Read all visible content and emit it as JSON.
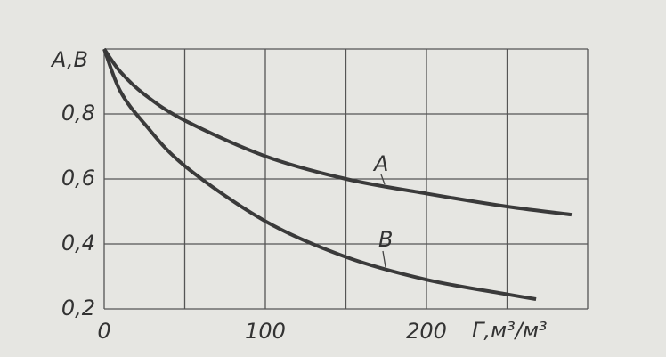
{
  "chart_data": {
    "type": "line",
    "y_label": "A,B",
    "x_label": "Г,м³/м³",
    "series": [
      {
        "name": "A",
        "color": "#3a3a3a",
        "x": [
          0,
          10,
          25,
          50,
          100,
          150,
          200,
          250,
          290
        ],
        "values": [
          1.0,
          0.93,
          0.86,
          0.78,
          0.67,
          0.6,
          0.555,
          0.515,
          0.49
        ]
      },
      {
        "name": "B",
        "color": "#3a3a3a",
        "x": [
          0,
          10,
          25,
          50,
          100,
          150,
          200,
          250,
          268
        ],
        "values": [
          1.0,
          0.87,
          0.77,
          0.64,
          0.47,
          0.36,
          0.29,
          0.245,
          0.23
        ]
      }
    ],
    "xlim": [
      0,
      300
    ],
    "ylim": [
      0.2,
      1.0
    ],
    "xticks": [
      0,
      100,
      200
    ],
    "xgrid": [
      0,
      50,
      100,
      150,
      200,
      250,
      300
    ],
    "yticks": [
      {
        "value": 0.2,
        "label": "0,2"
      },
      {
        "value": 0.4,
        "label": "0,4"
      },
      {
        "value": 0.6,
        "label": "0,6"
      },
      {
        "value": 0.8,
        "label": "0,8"
      },
      {
        "value": 1.0,
        "label": ""
      }
    ],
    "grid": true
  }
}
